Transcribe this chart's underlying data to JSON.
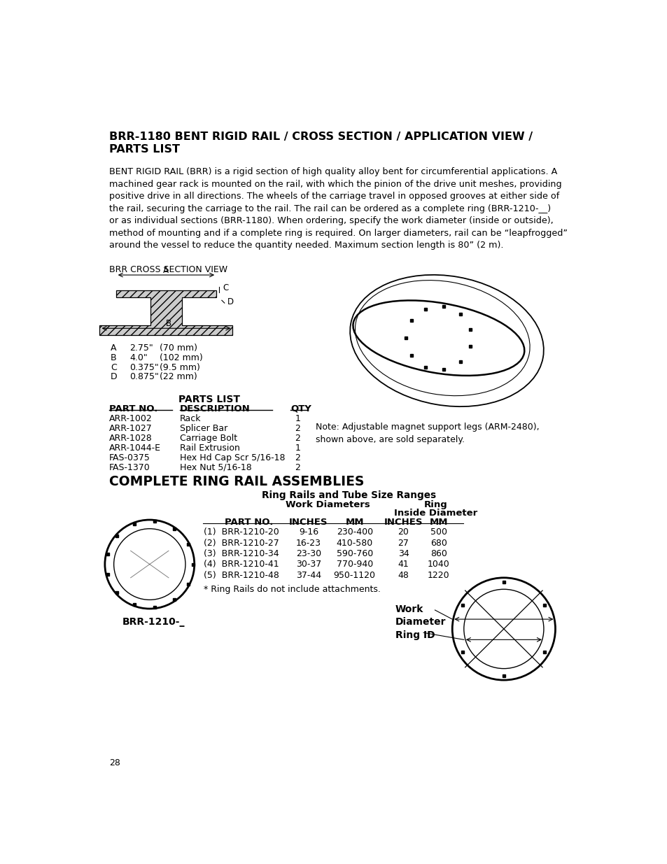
{
  "bg_color": "#ffffff",
  "page_num": "28",
  "main_title": "BRR-1180 BENT RIGID RAIL / CROSS SECTION / APPLICATION VIEW /\nPARTS LIST",
  "body_text": "BENT RIGID RAIL (BRR) is a rigid section of high quality alloy bent for circumferential applications. A\nmachined gear rack is mounted on the rail, with which the pinion of the drive unit meshes, providing\npositive drive in all directions. The wheels of the carriage travel in opposed grooves at either side of\nthe rail, securing the carriage to the rail. The rail can be ordered as a complete ring (BRR-1210-__)\nor as individual sections (BRR-1180). When ordering, specify the work diameter (inside or outside),\nmethod of mounting and if a complete ring is required. On larger diameters, rail can be “leapfrogged”\naround the vessel to reduce the quantity needed. Maximum section length is 80” (2 m).",
  "cross_section_label": "BRR CROSS SECTION VIEW",
  "dims": [
    {
      "label": "A",
      "val": "2.75\"",
      "mm": "(70 mm)"
    },
    {
      "label": "B",
      "val": "4.0\"",
      "mm": "(102 mm)"
    },
    {
      "label": "C",
      "val": "0.375\"",
      "mm": "(9.5 mm)"
    },
    {
      "label": "D",
      "val": "0.875\"",
      "mm": "(22 mm)"
    }
  ],
  "parts_list_title": "PARTS LIST",
  "parts_header_no": "PART NO.",
  "parts_header_desc": "DESCRIPTION",
  "parts_header_qty": "QTY",
  "parts": [
    {
      "no": "ARR-1002",
      "desc": "Rack",
      "qty": "1"
    },
    {
      "no": "ARR-1027",
      "desc": "Splicer Bar",
      "qty": "2"
    },
    {
      "no": "ARR-1028",
      "desc": "Carriage Bolt",
      "qty": "2"
    },
    {
      "no": "ARR-1044-E",
      "desc": "Rail Extrusion",
      "qty": "1"
    },
    {
      "no": "FAS-0375",
      "desc": "Hex Hd Cap Scr 5/16-18",
      "qty": "2"
    },
    {
      "no": "FAS-1370",
      "desc": "Hex Nut 5/16-18",
      "qty": "2"
    }
  ],
  "note_text": "Note: Adjustable magnet support legs (ARM-2480),\nshown above, are sold separately.",
  "section2_title": "COMPLETE RING RAIL ASSEMBLIES",
  "table_title": "Ring Rails and Tube Size Ranges",
  "table_rows": [
    [
      "(1)  BRR-1210-20",
      "9-16",
      "230-400",
      "20",
      "500"
    ],
    [
      "(2)  BRR-1210-27",
      "16-23",
      "410-580",
      "27",
      "680"
    ],
    [
      "(3)  BRR-1210-34",
      "23-30",
      "590-760",
      "34",
      "860"
    ],
    [
      "(4)  BRR-1210-41",
      "30-37",
      "770-940",
      "41",
      "1040"
    ],
    [
      "(5)  BRR-1210-48",
      "37-44",
      "950-1120",
      "48",
      "1220"
    ]
  ],
  "footnote": "* Ring Rails do not include attachments.",
  "brr_label": "BRR-1210-_",
  "work_diameter_label": "Work\nDiameter",
  "ring_id_label": "Ring ID"
}
